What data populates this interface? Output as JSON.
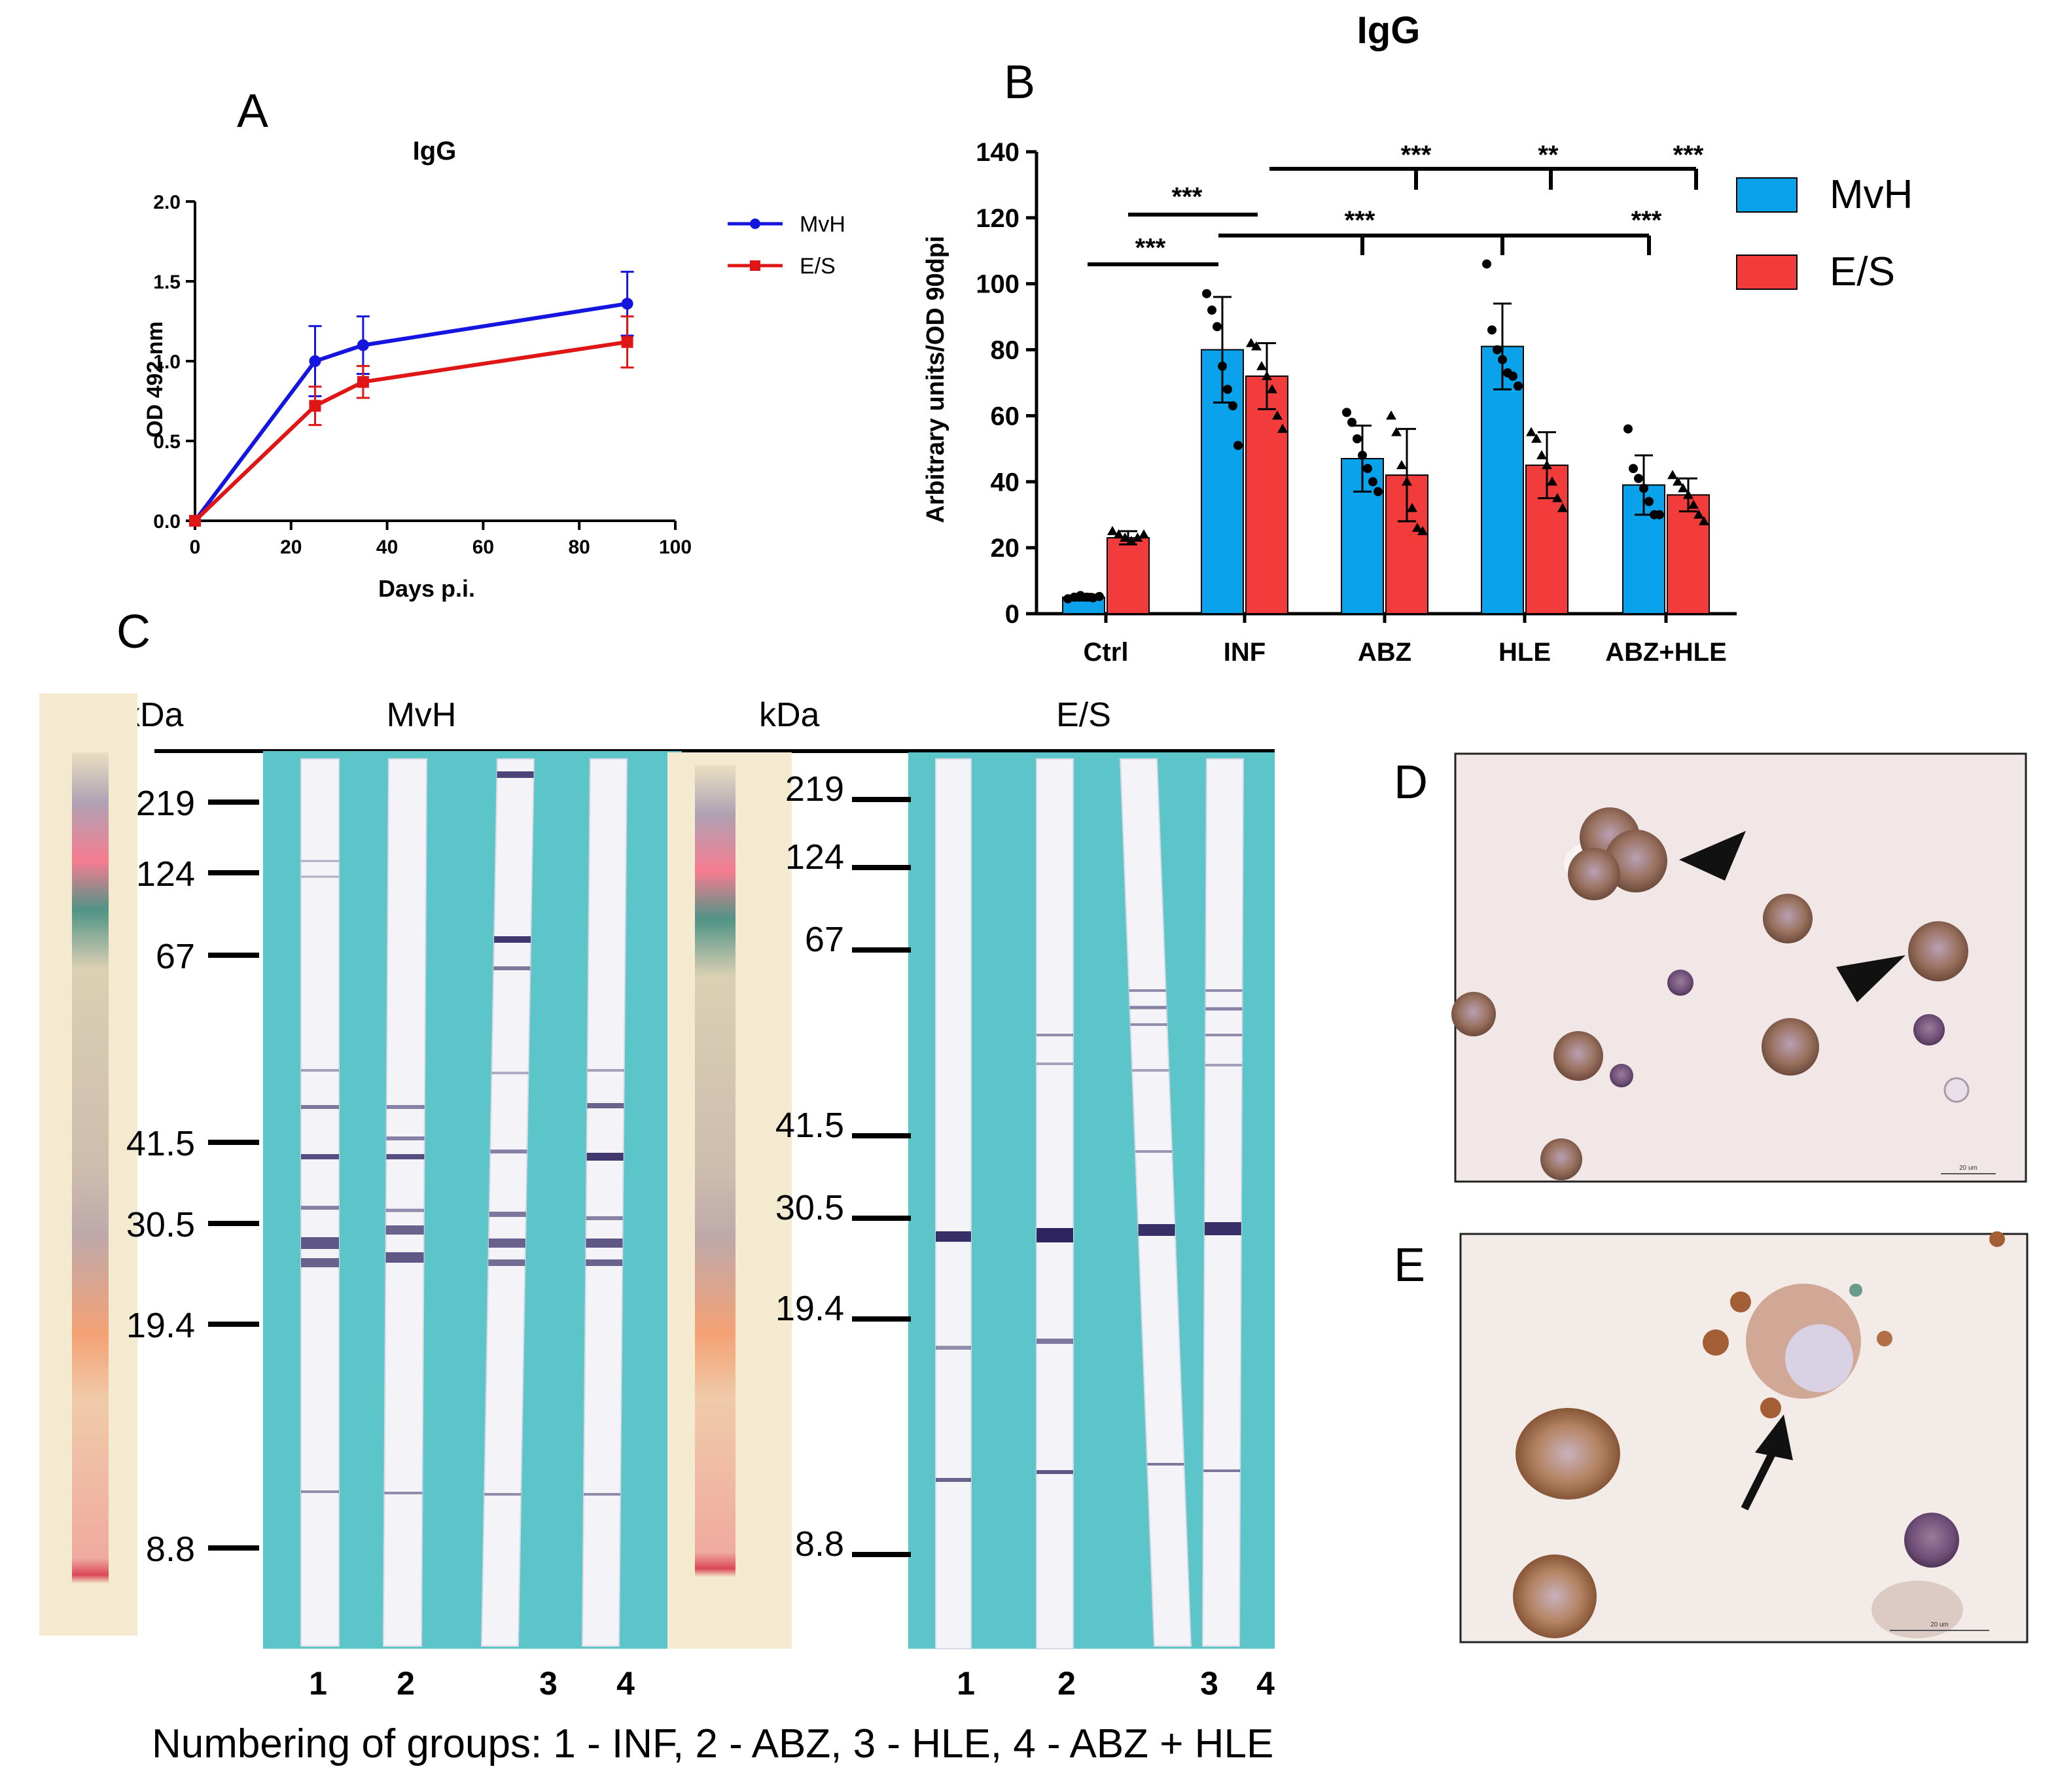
{
  "panel_letters": {
    "a": "A",
    "b": "B",
    "c": "C",
    "d": "D",
    "e": "E"
  },
  "chart_data": [
    {
      "panel": "A",
      "type": "line",
      "title": "IgG",
      "xlabel": "Days p.i.",
      "ylabel": "OD 492 nm",
      "xlim": [
        0,
        100
      ],
      "ylim": [
        0,
        2.0
      ],
      "xticks": [
        "0",
        "20",
        "40",
        "60",
        "80",
        "100"
      ],
      "yticks": [
        "0.0",
        "0.5",
        "1.0",
        "1.5",
        "2.0"
      ],
      "legend_position": "right",
      "series": [
        {
          "name": "MvH",
          "color": "#1515e0",
          "x": [
            0,
            25,
            35,
            90
          ],
          "y": [
            0,
            1.0,
            1.1,
            1.36
          ],
          "err": [
            0,
            0.22,
            0.18,
            0.2
          ]
        },
        {
          "name": "E/S",
          "color": "#e01515",
          "x": [
            0,
            25,
            35,
            90
          ],
          "y": [
            0,
            0.72,
            0.87,
            1.12
          ],
          "err": [
            0,
            0.12,
            0.1,
            0.16
          ]
        }
      ]
    },
    {
      "panel": "B",
      "type": "bar",
      "title": "IgG",
      "ylabel": "Arbitrary units/OD 90dpi",
      "ylim": [
        0,
        140
      ],
      "yticks": [
        "0",
        "20",
        "40",
        "60",
        "80",
        "100",
        "120",
        "140"
      ],
      "categories": [
        "Ctrl",
        "INF",
        "ABZ",
        "HLE",
        "ABZ+HLE"
      ],
      "legend_position": "right",
      "series": [
        {
          "name": "MvH",
          "color": "#0aa2ea",
          "values": [
            5,
            80,
            47,
            81,
            39
          ],
          "err": [
            1,
            16,
            10,
            13,
            9
          ],
          "points": [
            [
              4.5,
              5,
              5.5,
              5,
              4.8,
              5.2
            ],
            [
              97,
              92,
              87,
              75,
              68,
              63,
              51
            ],
            [
              61,
              58,
              53,
              48,
              44,
              40,
              37
            ],
            [
              106,
              86,
              80,
              77,
              73,
              72,
              69
            ],
            [
              56,
              44,
              41,
              38,
              34,
              30,
              30
            ]
          ]
        },
        {
          "name": "E/S",
          "color": "#f23b3b",
          "values": [
            23,
            72,
            42,
            45,
            36
          ],
          "err": [
            2,
            10,
            14,
            10,
            5
          ],
          "points": [
            [
              25,
              24,
              23,
              22,
              23,
              24
            ],
            [
              82,
              81,
              75,
              72,
              68,
              60,
              56
            ],
            [
              60,
              55,
              45,
              40,
              32,
              26,
              25
            ],
            [
              55,
              53,
              48,
              45,
              40,
              35,
              32
            ],
            [
              42,
              40,
              38,
              36,
              33,
              30,
              28
            ]
          ]
        }
      ],
      "significance": [
        {
          "label": "***",
          "from": "Ctrl",
          "to": "INF"
        },
        {
          "label": "***",
          "from": "Ctrl",
          "to": "INF"
        },
        {
          "label": "***",
          "from": "INF",
          "to": "ABZ"
        },
        {
          "label": "***",
          "from": "INF",
          "to": "ABZ+HLE"
        },
        {
          "label": "***",
          "from": "INF",
          "to": "ABZ"
        },
        {
          "label": "**",
          "from": "INF",
          "to": "HLE"
        },
        {
          "label": "***",
          "from": "INF",
          "to": "ABZ+HLE"
        }
      ]
    }
  ],
  "blot": {
    "kda_label": "kDa",
    "mvh_label": "MvH",
    "es_label": "E/S",
    "markers_left": [
      "219",
      "124",
      "67",
      "41.5",
      "30.5",
      "19.4",
      "8.8"
    ],
    "markers_right": [
      "219",
      "124",
      "67",
      "41.5",
      "30.5",
      "19.4",
      "8.8"
    ],
    "lanes_left": [
      "1",
      "2",
      "3",
      "4"
    ],
    "lanes_right": [
      "1",
      "2",
      "3",
      "4"
    ],
    "caption": "Numbering of groups: 1 - INF, 2 - ABZ, 3 - HLE, 4 - ABZ + HLE"
  },
  "micrograph_scale": "20 um"
}
